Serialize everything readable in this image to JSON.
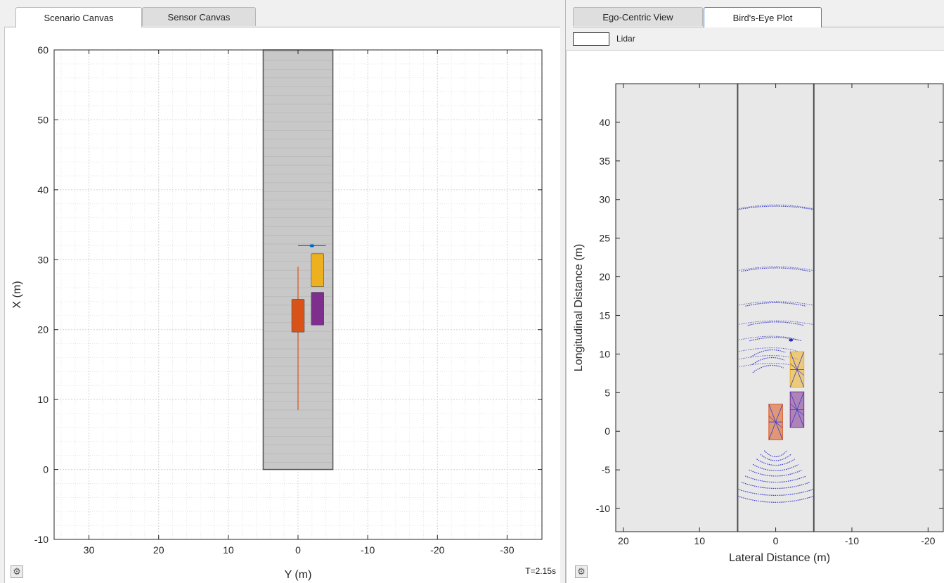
{
  "left_tabs": [
    {
      "label": "Scenario Canvas",
      "active": true
    },
    {
      "label": "Sensor Canvas",
      "active": false
    }
  ],
  "right_tabs": [
    {
      "label": "Ego-Centric View",
      "active": false
    },
    {
      "label": "Bird's-Eye Plot",
      "active": true
    }
  ],
  "scenario_plot": {
    "xlabel": "Y (m)",
    "ylabel": "X (m)",
    "x_ticks": [
      "30",
      "20",
      "10",
      "0",
      "-10",
      "-20",
      "-30"
    ],
    "y_ticks": [
      "60",
      "50",
      "40",
      "30",
      "20",
      "10",
      "0",
      "-10"
    ],
    "time": "T=2.15s"
  },
  "birds_eye_plot": {
    "legend_label": "Lidar",
    "xlabel": "Lateral Distance (m)",
    "ylabel": "Longitudinal Distance (m)",
    "x_ticks": [
      "20",
      "10",
      "0",
      "-10",
      "-20"
    ],
    "y_ticks": [
      "40",
      "35",
      "30",
      "25",
      "20",
      "15",
      "10",
      "5",
      "0",
      "-5",
      "-10"
    ]
  },
  "icons": {
    "settings": "gear-icon"
  },
  "chart_data": [
    {
      "type": "scatter",
      "name": "scenario-canvas",
      "xlabel": "Y (m)",
      "ylabel": "X (m)",
      "xlim": [
        35,
        -35
      ],
      "ylim": [
        -10,
        60
      ],
      "grid": true,
      "road": {
        "y_range": [
          -5,
          5
        ],
        "x_range": [
          0,
          60
        ]
      },
      "vehicles": [
        {
          "color": "#d95319",
          "y_center": 0,
          "x_center": 22,
          "length": 4.7,
          "width": 1.8
        },
        {
          "color": "#7e2f8e",
          "y_center": -2.8,
          "x_center": 23,
          "length": 4.7,
          "width": 1.8
        },
        {
          "color": "#edb120",
          "y_center": -2.8,
          "x_center": 28.5,
          "length": 4.7,
          "width": 1.8
        }
      ],
      "trajectory": {
        "color": "#d95319",
        "y": 0,
        "x_range": [
          8.5,
          29
        ]
      },
      "pedestrian": {
        "y_center": -2,
        "x_center": 32
      }
    },
    {
      "type": "scatter",
      "name": "birds-eye-plot",
      "legend": [
        "Lidar"
      ],
      "xlabel": "Lateral Distance (m)",
      "ylabel": "Longitudinal Distance (m)",
      "xlim": [
        21,
        -22
      ],
      "ylim": [
        -13,
        45
      ],
      "road_lines": [
        5,
        -5
      ],
      "lidar_rings_ahead": [
        29,
        21,
        16.5,
        14,
        12,
        10.5,
        9.5,
        8.5
      ],
      "lidar_rings_behind": [
        -3.5,
        -4,
        -4.6,
        -5.3,
        -6,
        -6.8,
        -7.6,
        -8.5,
        -9.4
      ],
      "detections": [
        {
          "color": "#d95319",
          "lateral": 0,
          "longitudinal": 1.2
        },
        {
          "color": "#7e2f8e",
          "lateral": -2.8,
          "longitudinal": 2.8
        },
        {
          "color": "#edb120",
          "lateral": -2.8,
          "longitudinal": 8
        }
      ]
    }
  ]
}
